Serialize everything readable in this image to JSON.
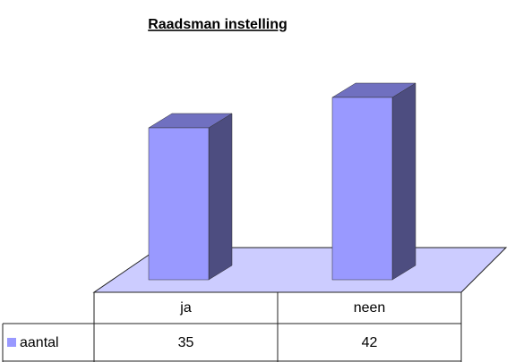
{
  "chart_data": {
    "type": "bar",
    "title": "Raadsman instelling",
    "categories": [
      "ja",
      "neen"
    ],
    "series": [
      {
        "name": "aantal",
        "color": "#9999ff",
        "values": [
          35,
          42
        ]
      }
    ]
  }
}
